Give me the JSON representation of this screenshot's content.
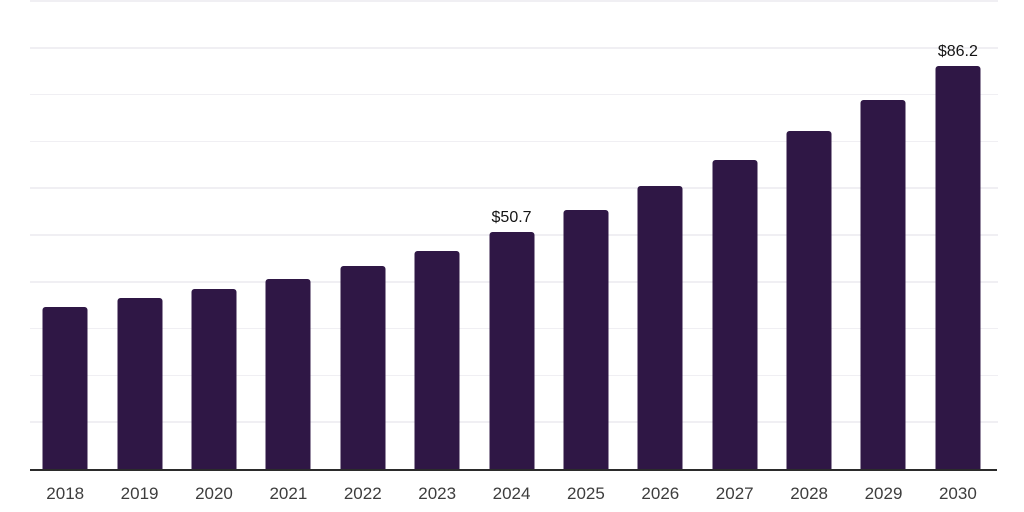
{
  "chart": {
    "background_color": "#ffffff",
    "bar_color": "#2f1745",
    "gridline_color": "#f0eff3",
    "axis_line_color": "#2b2b2b",
    "x_label_color": "#3d3d3d",
    "data_label_color": "#141414"
  },
  "chart_data": {
    "type": "bar",
    "title": "",
    "xlabel": "",
    "ylabel": "",
    "categories": [
      "2018",
      "2019",
      "2020",
      "2021",
      "2022",
      "2023",
      "2024",
      "2025",
      "2026",
      "2027",
      "2028",
      "2029",
      "2030"
    ],
    "values": [
      34.6,
      36.5,
      38.4,
      40.5,
      43.4,
      46.6,
      50.7,
      55.4,
      60.5,
      66.1,
      72.2,
      78.9,
      86.2
    ],
    "data_labels": [
      {
        "index": 6,
        "category": "2024",
        "text": "$50.7"
      },
      {
        "index": 12,
        "category": "2030",
        "text": "$86.2"
      }
    ],
    "ylim": [
      0,
      100
    ],
    "gridline_step": 10,
    "grid": "horizontal-only",
    "y_axis_tick_labels_visible": false,
    "legend_position": "none"
  }
}
